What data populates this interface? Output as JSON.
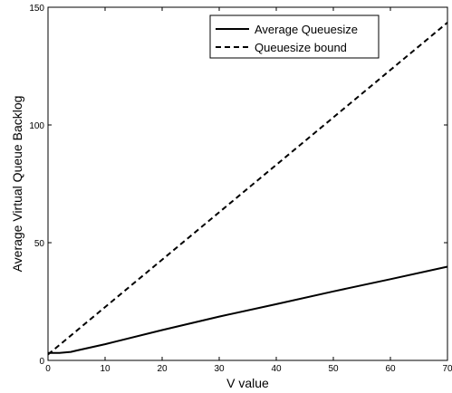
{
  "chart_data": {
    "type": "line",
    "title": "",
    "xlabel": "V value",
    "ylabel": "Average Virtual Queue Backlog",
    "xlim": [
      0,
      70
    ],
    "ylim": [
      0,
      150
    ],
    "xticks": [
      0,
      10,
      20,
      30,
      40,
      50,
      60,
      70
    ],
    "yticks": [
      0,
      50,
      100,
      150
    ],
    "grid": false,
    "legend_position": "top-right",
    "series": [
      {
        "name": "Average Queuesize",
        "style": "solid",
        "color": "#000000",
        "x": [
          0,
          2,
          4,
          5,
          10,
          20,
          30,
          40,
          50,
          60,
          70
        ],
        "y": [
          3.2,
          3.2,
          3.6,
          4.2,
          6.9,
          12.9,
          18.6,
          23.9,
          29.3,
          34.5,
          39.8
        ]
      },
      {
        "name": "Queuesize bound",
        "style": "dashed",
        "color": "#000000",
        "x": [
          0,
          70
        ],
        "y": [
          2.5,
          143.5
        ]
      }
    ]
  }
}
